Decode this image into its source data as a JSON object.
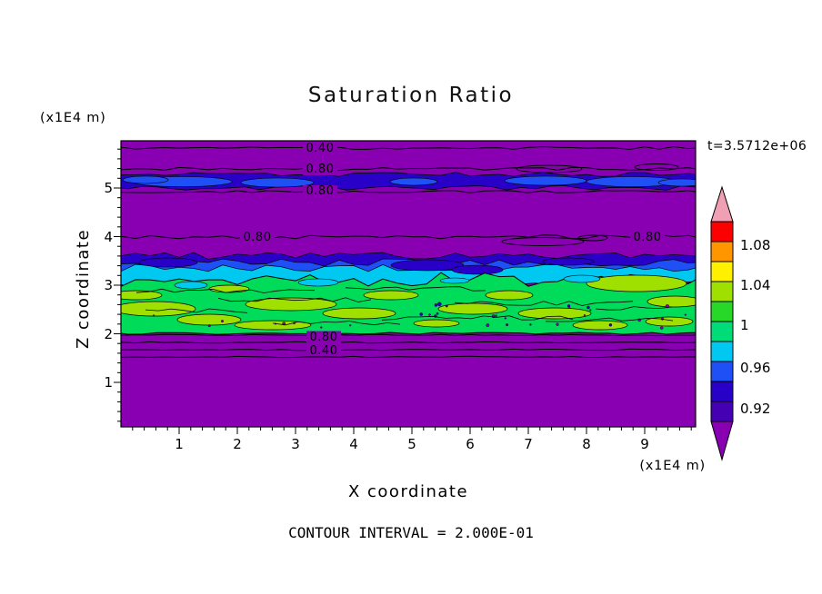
{
  "title": "Saturation Ratio",
  "axes": {
    "x_label": "X coordinate",
    "y_label": "Z coordinate",
    "x_units": "(x1E4 m)",
    "y_units": "(x1E4 m)",
    "x_ticks": [
      "1",
      "2",
      "3",
      "4",
      "5",
      "6",
      "7",
      "8",
      "9"
    ],
    "y_ticks": [
      "5",
      "4",
      "3",
      "2",
      "1"
    ]
  },
  "annotations": {
    "time": "t=3.5712e+06",
    "contour_interval": "CONTOUR INTERVAL = 2.000E-01"
  },
  "colorbar": {
    "labels": [
      "1.08",
      "1.04",
      "1",
      "0.96",
      "0.92"
    ],
    "band_colors_top_to_bottom": [
      "#F0A0B4",
      "#FA0000",
      "#FF9600",
      "#FFF000",
      "#A0E000",
      "#28D828",
      "#00DC78",
      "#00C8F0",
      "#1E50F5",
      "#2800C8",
      "#4600B4",
      "#8800B2"
    ]
  },
  "palette": {
    "background": "#FFFFFF",
    "purple": "#8800B2",
    "dark_blue": "#2800C8",
    "blue": "#1E50F5",
    "cyan": "#00C8F0",
    "green": "#00DC5A",
    "yellow_green": "#A0E000",
    "contour_line": "#000000"
  },
  "contour_labels": [
    {
      "text": "0.40"
    },
    {
      "text": "0.80"
    },
    {
      "text": "0.80"
    },
    {
      "text": "0.80"
    },
    {
      "text": "0.80"
    },
    {
      "text": "0.80"
    },
    {
      "text": "0.40"
    }
  ],
  "chart_data": {
    "type": "heatmap",
    "title": "Saturation Ratio",
    "xlabel": "X coordinate (x1E4 m)",
    "ylabel": "Z coordinate (x1E4 m)",
    "xlim": [
      0,
      10
    ],
    "ylim": [
      0,
      6
    ],
    "time_annotation": "t=3.5712e+06",
    "contour_interval": 0.2,
    "colorbar_ticks": [
      1.08,
      1.04,
      1.0,
      0.96,
      0.92
    ],
    "colorbar_step": 0.02,
    "field_bands": [
      {
        "z_range": [
          0.0,
          1.9
        ],
        "saturation": "0.2-0.8",
        "color": "purple",
        "note": "stratified sub-layer; flat 0.80 and 0.40 contour lines near z=1.6-2.0"
      },
      {
        "z_range": [
          2.0,
          3.3
        ],
        "saturation": "0.98-1.04",
        "color": "green with yellow-green patches",
        "note": "turbulent saturated cloud layer with many small closed contours and speckle"
      },
      {
        "z_range": [
          3.3,
          3.6
        ],
        "saturation": "0.92-0.98",
        "color": "cyan/blue/dark-blue transition along top of saturated layer"
      },
      {
        "z_range": [
          3.6,
          4.9
        ],
        "saturation": "0.80-0.92",
        "color": "purple",
        "note": "0.80 contour running along z=4"
      },
      {
        "z_range": [
          4.9,
          5.3
        ],
        "saturation": "0.92-0.96",
        "color": "dark blue band with brighter blue patches"
      },
      {
        "z_range": [
          5.3,
          6.0
        ],
        "saturation": "0.2-0.8",
        "color": "purple",
        "note": "0.80 contours near z=5.0-5.4 and 0.40 contour near z=5.8"
      }
    ],
    "contour_line_labels": [
      {
        "value": 0.4,
        "x": 3.4,
        "z": 5.8
      },
      {
        "value": 0.8,
        "x": 3.4,
        "z": 5.4
      },
      {
        "value": 0.8,
        "x": 3.4,
        "z": 4.95
      },
      {
        "value": 0.8,
        "x": 2.3,
        "z": 4.0
      },
      {
        "value": 0.8,
        "x": 9.0,
        "z": 4.0
      },
      {
        "value": 0.8,
        "x": 3.5,
        "z": 1.9
      },
      {
        "value": 0.4,
        "x": 3.5,
        "z": 1.6
      }
    ]
  }
}
